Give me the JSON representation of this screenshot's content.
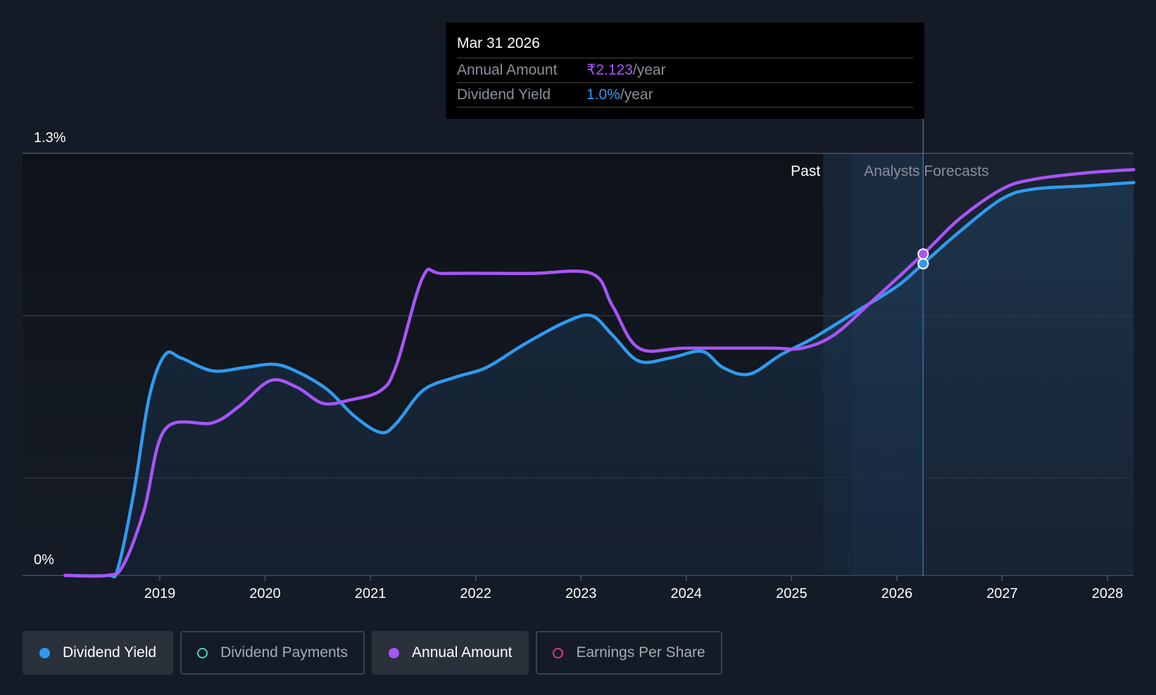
{
  "tooltip": {
    "date": "Mar 31 2026",
    "rows": [
      {
        "label": "Annual Amount",
        "value": "₹2.123",
        "unit": "/year",
        "color": "#a855f7"
      },
      {
        "label": "Dividend Yield",
        "value": "1.0%",
        "unit": "/year",
        "color": "#2f9bef"
      }
    ]
  },
  "regions": {
    "past_label": "Past",
    "forecast_label": "Analysts Forecasts"
  },
  "legend": [
    {
      "label": "Dividend Yield",
      "color": "#2f9bef",
      "active": true,
      "filled": true
    },
    {
      "label": "Dividend Payments",
      "color": "#4fd1c5",
      "active": false,
      "filled": false
    },
    {
      "label": "Annual Amount",
      "color": "#a855f7",
      "active": true,
      "filled": true
    },
    {
      "label": "Earnings Per Share",
      "color": "#d63c7e",
      "active": false,
      "filled": false
    }
  ],
  "chart_data": {
    "type": "line",
    "ylim": [
      0,
      1.3
    ],
    "y_tick_labels": [
      "1.3%",
      "0%"
    ],
    "gridlines": [
      0.3,
      0.8,
      1.3
    ],
    "x_ticks": [
      2019,
      2020,
      2021,
      2022,
      2023,
      2024,
      2025,
      2026,
      2027,
      2028
    ],
    "xlim": [
      2018.62,
      2028.25
    ],
    "forecast_start": 2025.3,
    "hover_x": 2026.25,
    "series": [
      {
        "name": "Dividend Yield",
        "color": "#2f9bef",
        "points": [
          [
            2018.1,
            0
          ],
          [
            2018.5,
            0
          ],
          [
            2018.6,
            0.02
          ],
          [
            2018.75,
            0.25
          ],
          [
            2018.9,
            0.55
          ],
          [
            2019.05,
            0.68
          ],
          [
            2019.2,
            0.67
          ],
          [
            2019.5,
            0.63
          ],
          [
            2019.8,
            0.64
          ],
          [
            2020.1,
            0.65
          ],
          [
            2020.35,
            0.62
          ],
          [
            2020.6,
            0.57
          ],
          [
            2020.85,
            0.49
          ],
          [
            2021.1,
            0.44
          ],
          [
            2021.25,
            0.47
          ],
          [
            2021.5,
            0.57
          ],
          [
            2021.8,
            0.61
          ],
          [
            2022.1,
            0.64
          ],
          [
            2022.45,
            0.71
          ],
          [
            2022.85,
            0.78
          ],
          [
            2023.1,
            0.8
          ],
          [
            2023.3,
            0.74
          ],
          [
            2023.55,
            0.66
          ],
          [
            2023.85,
            0.67
          ],
          [
            2024.15,
            0.69
          ],
          [
            2024.35,
            0.64
          ],
          [
            2024.6,
            0.62
          ],
          [
            2024.9,
            0.68
          ],
          [
            2025.2,
            0.73
          ],
          [
            2025.6,
            0.81
          ],
          [
            2026.0,
            0.89
          ],
          [
            2026.25,
            0.96
          ],
          [
            2026.6,
            1.06
          ],
          [
            2027.0,
            1.16
          ],
          [
            2027.3,
            1.19
          ],
          [
            2027.8,
            1.2
          ],
          [
            2028.25,
            1.21
          ]
        ]
      },
      {
        "name": "Annual Amount",
        "color": "#a855f7",
        "points": [
          [
            2018.1,
            0
          ],
          [
            2018.5,
            0
          ],
          [
            2018.65,
            0.03
          ],
          [
            2018.85,
            0.2
          ],
          [
            2019.05,
            0.45
          ],
          [
            2019.5,
            0.47
          ],
          [
            2019.75,
            0.52
          ],
          [
            2020.05,
            0.6
          ],
          [
            2020.3,
            0.58
          ],
          [
            2020.55,
            0.53
          ],
          [
            2020.8,
            0.54
          ],
          [
            2021.1,
            0.57
          ],
          [
            2021.25,
            0.65
          ],
          [
            2021.5,
            0.92
          ],
          [
            2021.7,
            0.93
          ],
          [
            2022.5,
            0.93
          ],
          [
            2023.1,
            0.93
          ],
          [
            2023.3,
            0.83
          ],
          [
            2023.55,
            0.7
          ],
          [
            2024.0,
            0.7
          ],
          [
            2024.8,
            0.7
          ],
          [
            2025.1,
            0.7
          ],
          [
            2025.4,
            0.74
          ],
          [
            2025.75,
            0.84
          ],
          [
            2026.25,
            0.99
          ],
          [
            2026.6,
            1.1
          ],
          [
            2027.0,
            1.19
          ],
          [
            2027.3,
            1.22
          ],
          [
            2027.8,
            1.24
          ],
          [
            2028.25,
            1.25
          ]
        ]
      }
    ]
  }
}
